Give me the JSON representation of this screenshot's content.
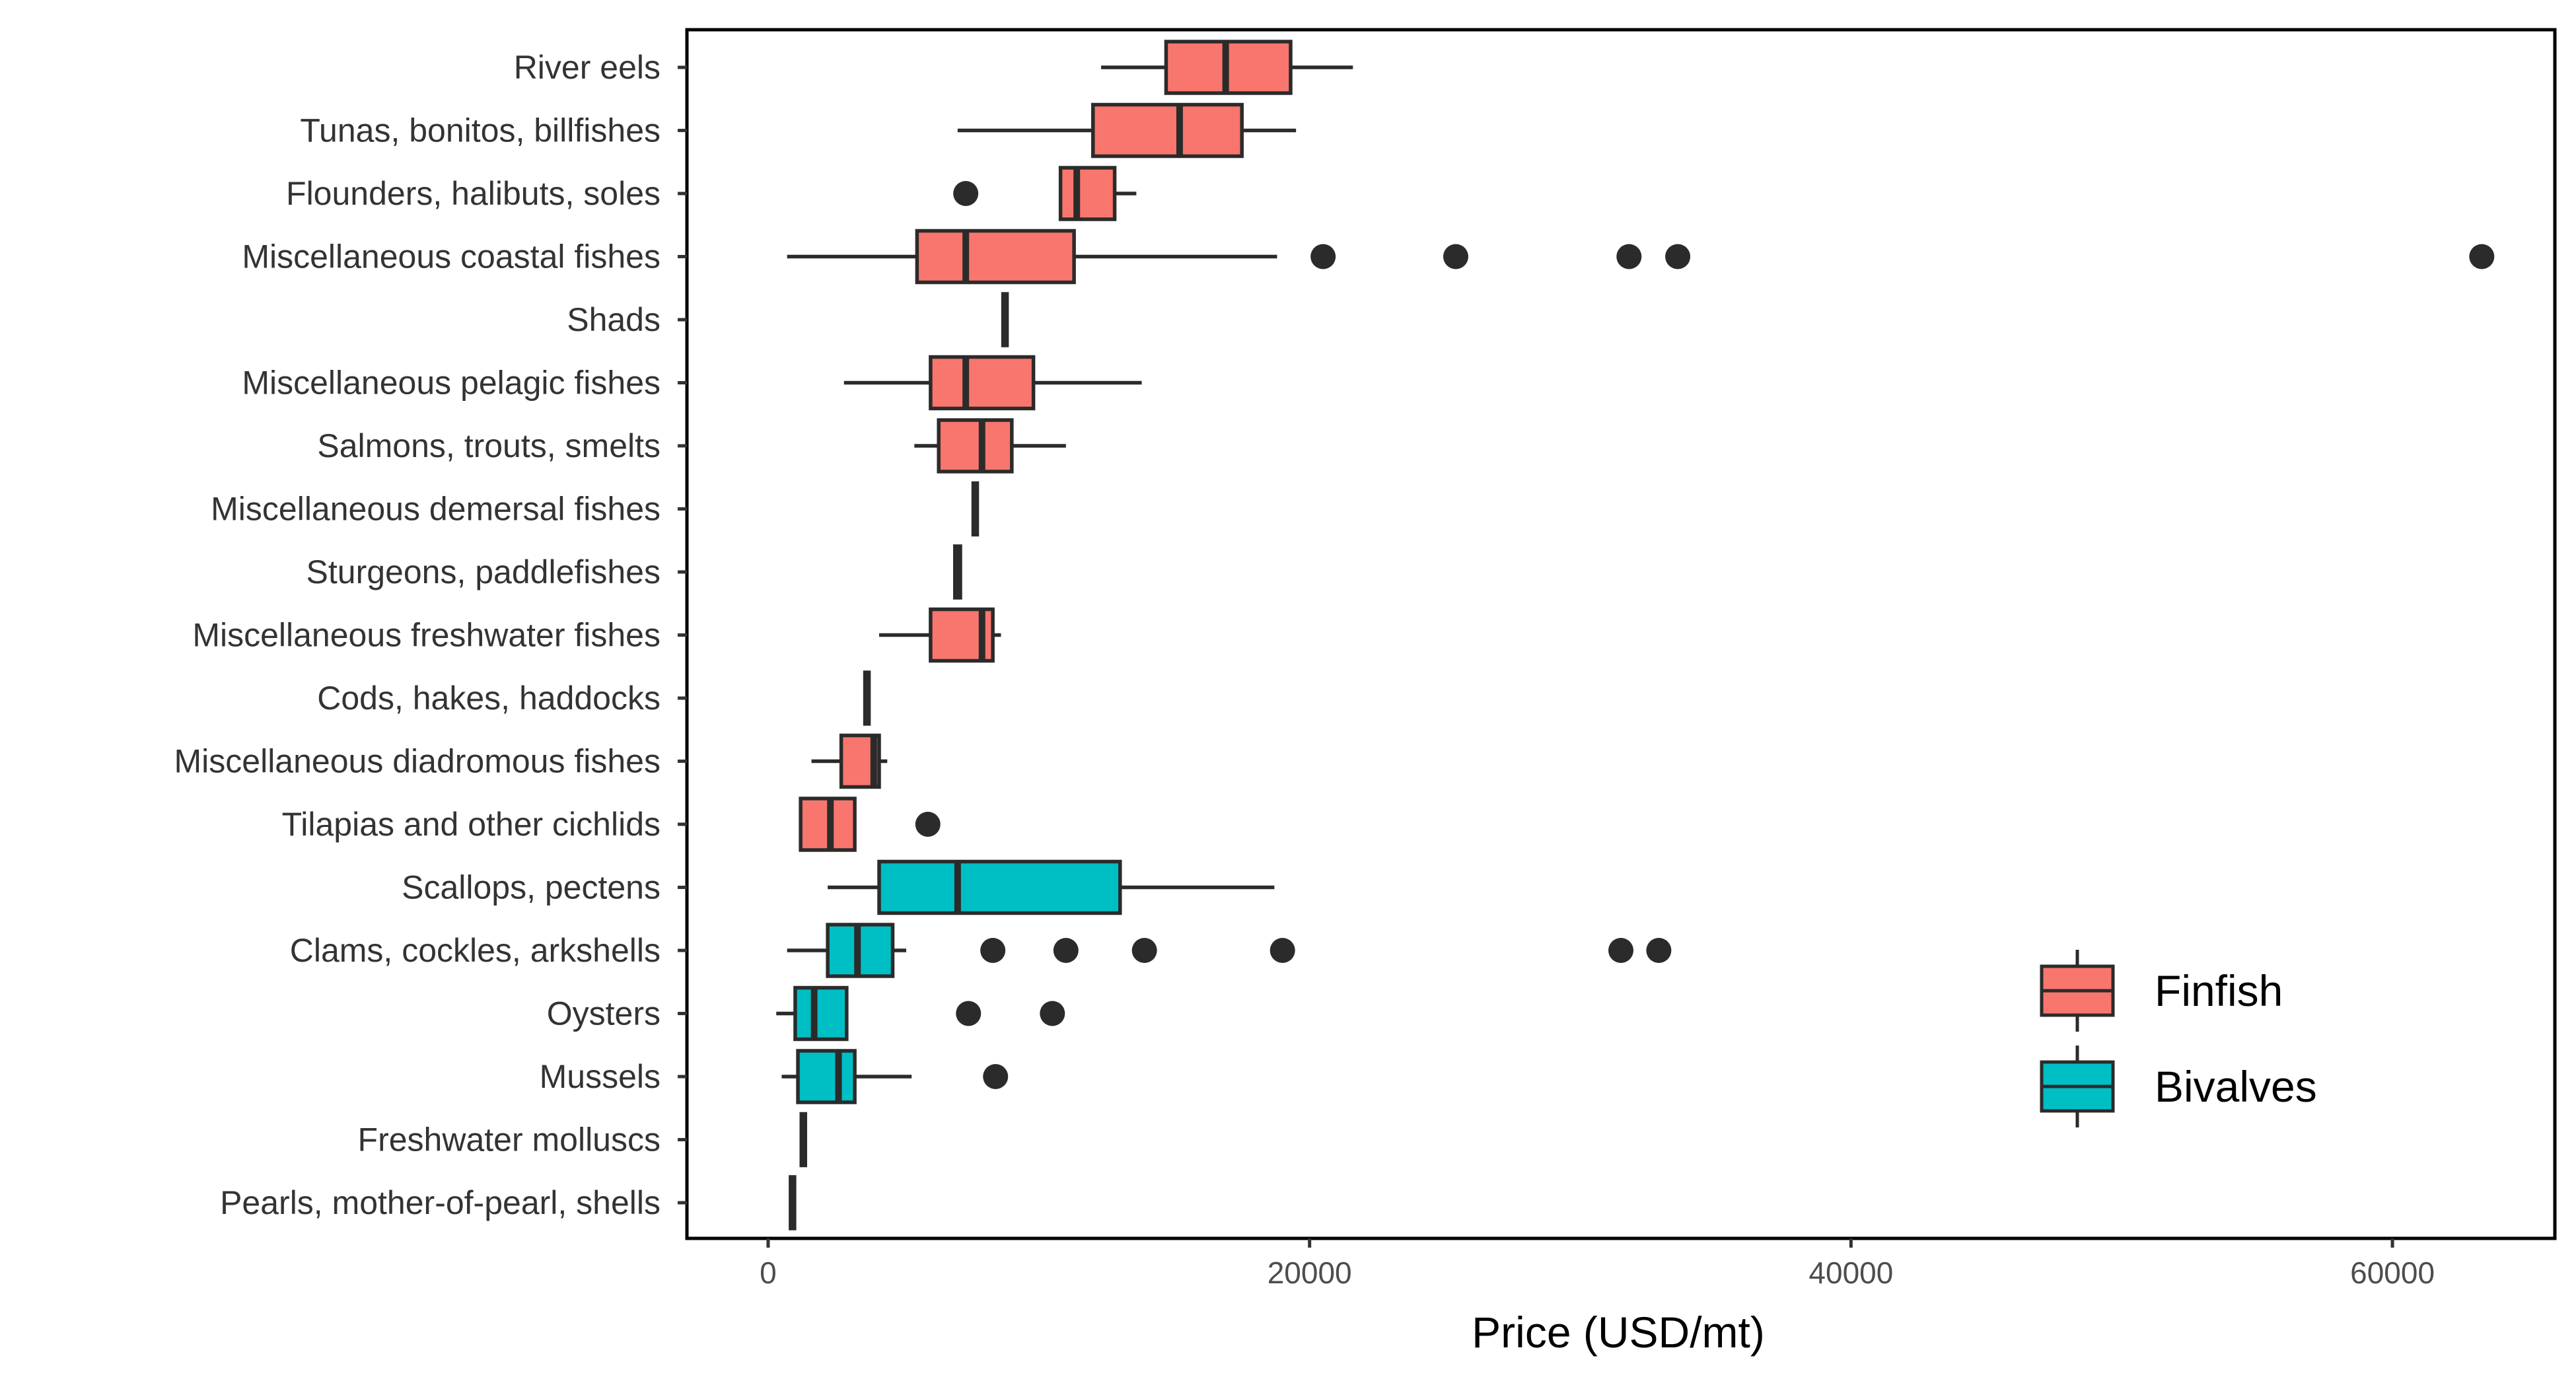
{
  "chart_data": {
    "type": "boxplot",
    "orientation": "horizontal",
    "title": "",
    "xlabel": "Price (USD/mt)",
    "ylabel": "",
    "xlim": [
      -3000,
      66000
    ],
    "xticks": [
      0,
      20000,
      40000,
      60000
    ],
    "xtick_labels": [
      "0",
      "20000",
      "40000",
      "60000"
    ],
    "grid": false,
    "legend": {
      "position": "bottom-right-inside",
      "entries": [
        {
          "name": "Finfish",
          "color": "#F8766D"
        },
        {
          "name": "Bivalves",
          "color": "#00BFC4"
        }
      ]
    },
    "categories": [
      {
        "label": "River eels",
        "group": "Finfish",
        "whisker_low": 12300,
        "q1": 14700,
        "median": 16900,
        "q3": 19300,
        "whisker_high": 21600,
        "outliers": []
      },
      {
        "label": "Tunas, bonitos, billfishes",
        "group": "Finfish",
        "whisker_low": 7000,
        "q1": 12000,
        "median": 15200,
        "q3": 17500,
        "whisker_high": 19500,
        "outliers": []
      },
      {
        "label": "Flounders, halibuts, soles",
        "group": "Finfish",
        "whisker_low": 10800,
        "q1": 10800,
        "median": 11400,
        "q3": 12800,
        "whisker_high": 13600,
        "outliers": [
          7300
        ]
      },
      {
        "label": "Miscellaneous coastal fishes",
        "group": "Finfish",
        "whisker_low": 700,
        "q1": 5500,
        "median": 7300,
        "q3": 11300,
        "whisker_high": 18800,
        "outliers": [
          20500,
          25400,
          31800,
          33600,
          63300
        ]
      },
      {
        "label": "Shads",
        "group": "Finfish",
        "whisker_low": 8700,
        "q1": 8700,
        "median": 8750,
        "q3": 8800,
        "whisker_high": 8800,
        "outliers": []
      },
      {
        "label": "Miscellaneous pelagic fishes",
        "group": "Finfish",
        "whisker_low": 2800,
        "q1": 6000,
        "median": 7300,
        "q3": 9800,
        "whisker_high": 13800,
        "outliers": []
      },
      {
        "label": "Salmons, trouts, smelts",
        "group": "Finfish",
        "whisker_low": 5400,
        "q1": 6300,
        "median": 7900,
        "q3": 9000,
        "whisker_high": 11000,
        "outliers": []
      },
      {
        "label": "Miscellaneous demersal fishes",
        "group": "Finfish",
        "whisker_low": 7600,
        "q1": 7600,
        "median": 7650,
        "q3": 7700,
        "whisker_high": 7700,
        "outliers": []
      },
      {
        "label": "Sturgeons, paddlefishes",
        "group": "Finfish",
        "whisker_low": 6900,
        "q1": 6900,
        "median": 7000,
        "q3": 7100,
        "whisker_high": 7100,
        "outliers": []
      },
      {
        "label": "Miscellaneous freshwater fishes",
        "group": "Finfish",
        "whisker_low": 4100,
        "q1": 6000,
        "median": 7900,
        "q3": 8300,
        "whisker_high": 8600,
        "outliers": []
      },
      {
        "label": "Cods, hakes, haddocks",
        "group": "Finfish",
        "whisker_low": 3600,
        "q1": 3600,
        "median": 3650,
        "q3": 3700,
        "whisker_high": 3700,
        "outliers": []
      },
      {
        "label": "Miscellaneous diadromous fishes",
        "group": "Finfish",
        "whisker_low": 1600,
        "q1": 2700,
        "median": 3900,
        "q3": 4100,
        "whisker_high": 4400,
        "outliers": []
      },
      {
        "label": "Tilapias and other cichlids",
        "group": "Finfish",
        "whisker_low": 1200,
        "q1": 1200,
        "median": 2300,
        "q3": 3200,
        "whisker_high": 3200,
        "outliers": [
          5900
        ]
      },
      {
        "label": "Scallops, pectens",
        "group": "Bivalves",
        "whisker_low": 2200,
        "q1": 4100,
        "median": 7000,
        "q3": 13000,
        "whisker_high": 18700,
        "outliers": []
      },
      {
        "label": "Clams, cockles, arkshells",
        "group": "Bivalves",
        "whisker_low": 700,
        "q1": 2200,
        "median": 3300,
        "q3": 4600,
        "whisker_high": 5100,
        "outliers": [
          8300,
          11000,
          13900,
          19000,
          31500,
          32900
        ]
      },
      {
        "label": "Oysters",
        "group": "Bivalves",
        "whisker_low": 300,
        "q1": 1000,
        "median": 1700,
        "q3": 2900,
        "whisker_high": 2900,
        "outliers": [
          7400,
          10500
        ]
      },
      {
        "label": "Mussels",
        "group": "Bivalves",
        "whisker_low": 500,
        "q1": 1100,
        "median": 2600,
        "q3": 3200,
        "whisker_high": 5300,
        "outliers": [
          8400
        ]
      },
      {
        "label": "Freshwater molluscs",
        "group": "Bivalves",
        "whisker_low": 1250,
        "q1": 1250,
        "median": 1300,
        "q3": 1350,
        "whisker_high": 1350,
        "outliers": []
      },
      {
        "label": "Pearls, mother-of-pearl, shells",
        "group": "Bivalves",
        "whisker_low": 850,
        "q1": 850,
        "median": 900,
        "q3": 950,
        "whisker_high": 950,
        "outliers": []
      }
    ]
  }
}
